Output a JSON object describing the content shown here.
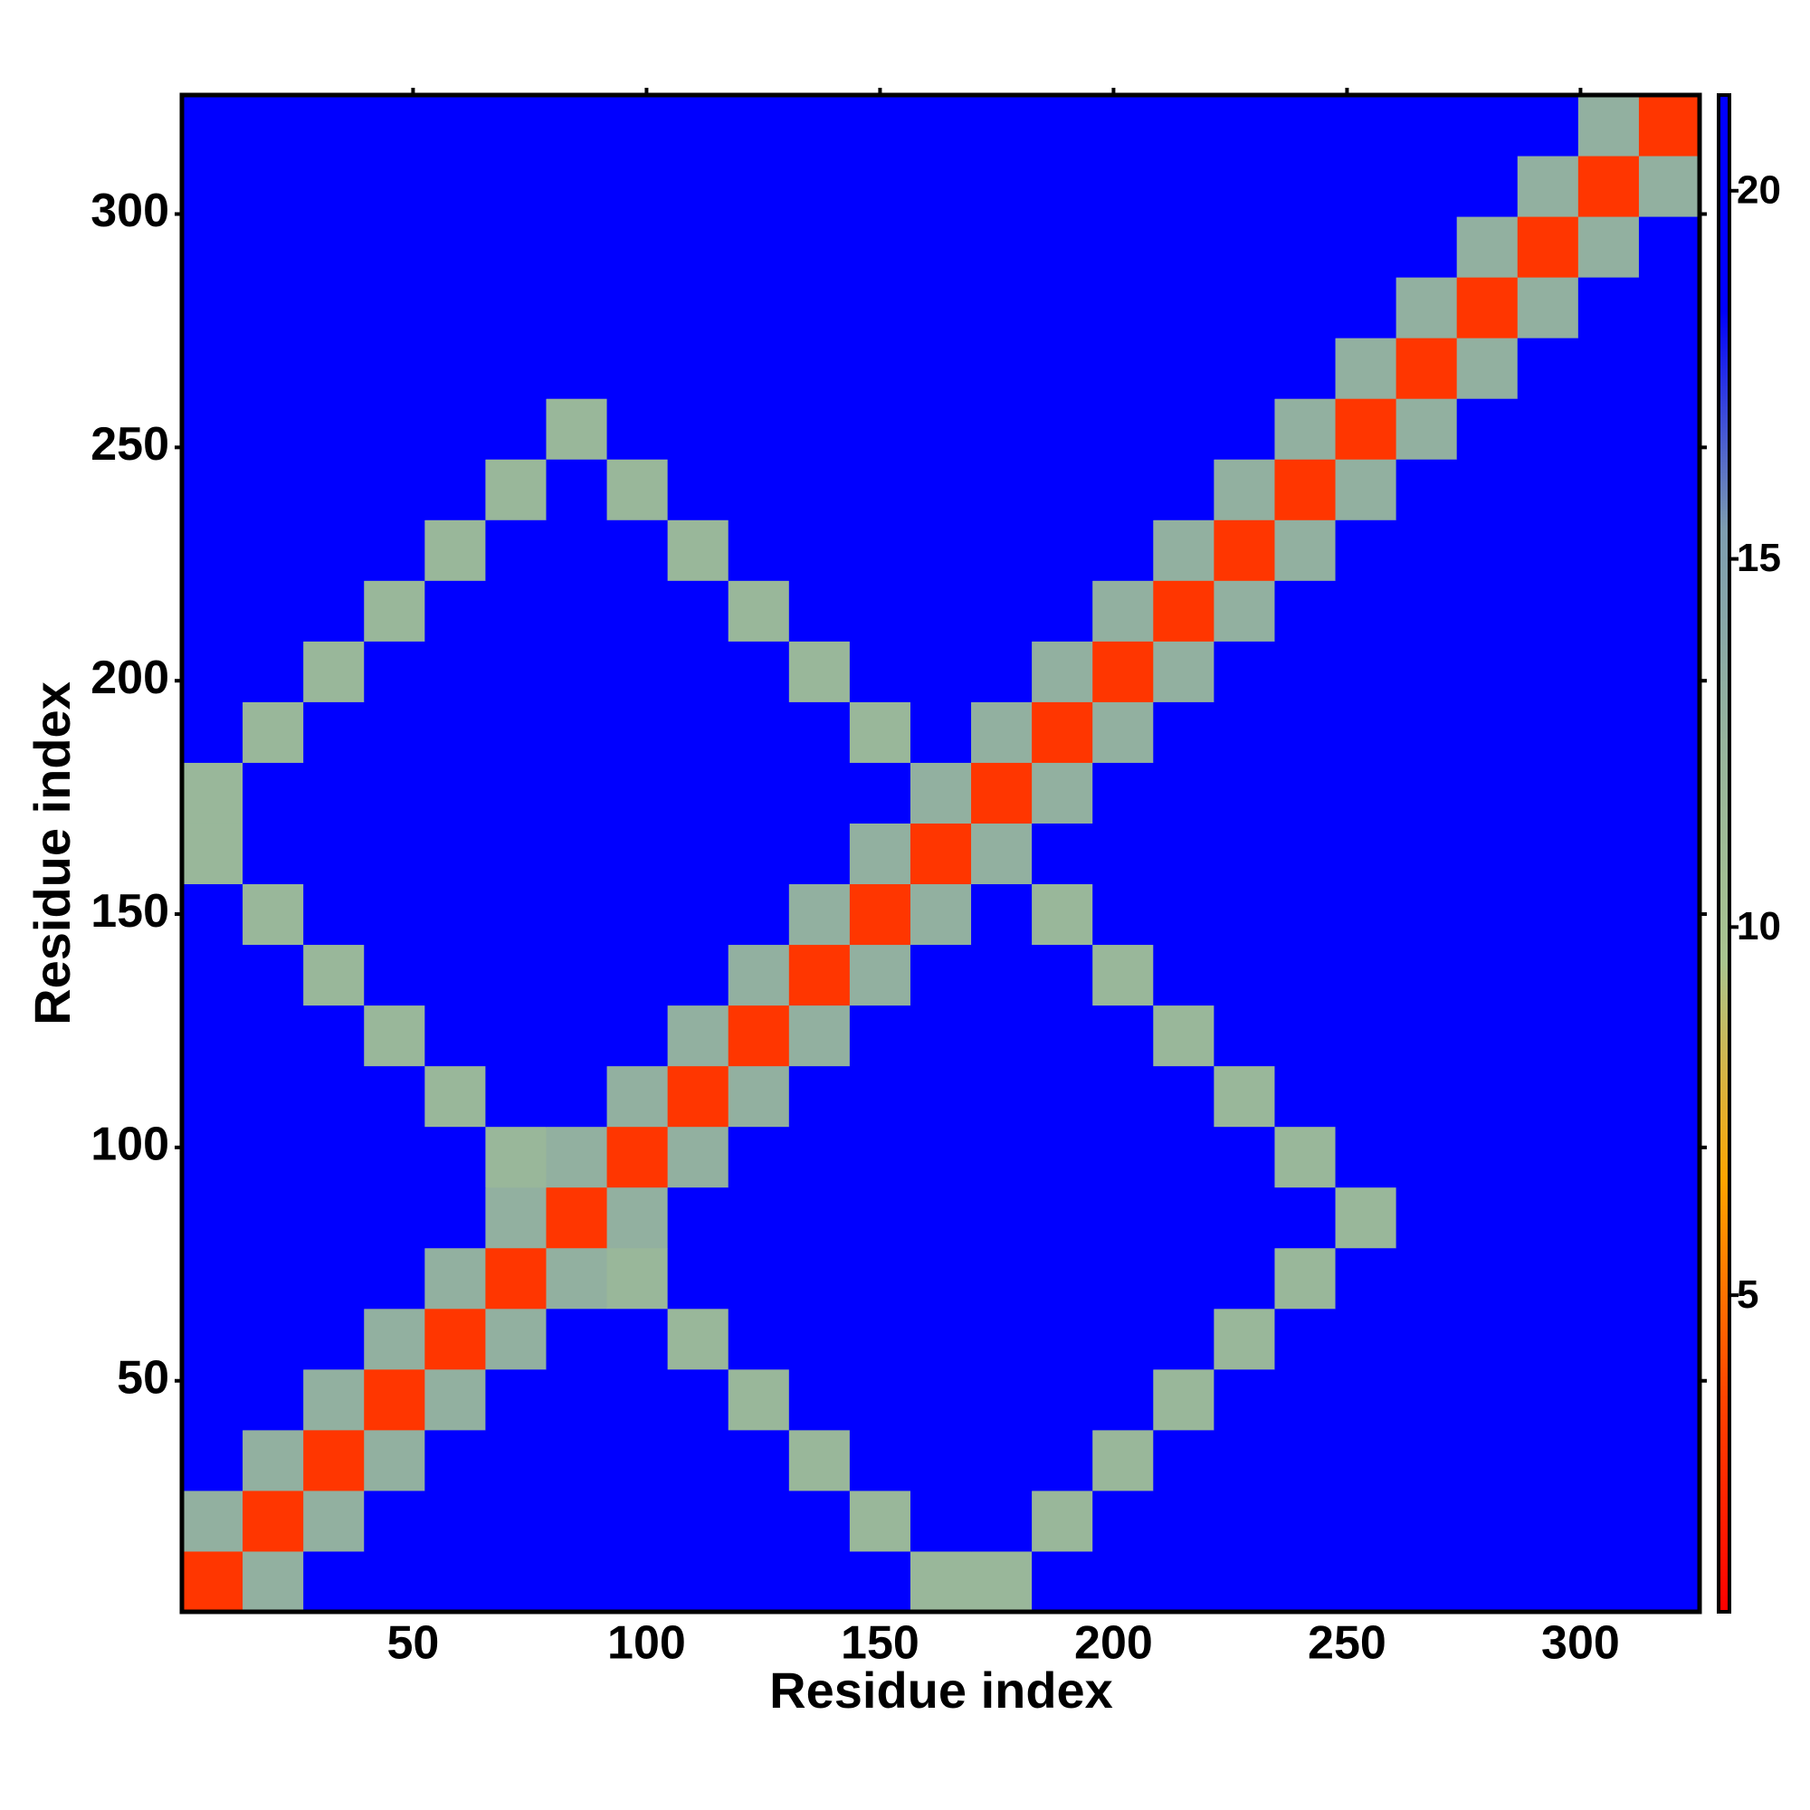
{
  "chart_data": {
    "type": "heatmap",
    "xlabel": "Residue index",
    "ylabel": "Residue index",
    "x": [
      7,
      20,
      33,
      46,
      59,
      72,
      85,
      98,
      111,
      124,
      137,
      150,
      163,
      176,
      189,
      202,
      215,
      228,
      241,
      254,
      267,
      280,
      293,
      306,
      319
    ],
    "y": [
      7,
      20,
      33,
      46,
      59,
      72,
      85,
      98,
      111,
      124,
      137,
      150,
      163,
      176,
      189,
      202,
      215,
      228,
      241,
      254,
      267,
      280,
      293,
      306,
      319
    ],
    "xlim": [
      0.5,
      325.5
    ],
    "ylim": [
      0.5,
      325.5
    ],
    "xticks": [
      50,
      100,
      150,
      200,
      250,
      300
    ],
    "yticks": [
      50,
      100,
      150,
      200,
      250,
      300
    ],
    "zlim": [
      0.7,
      21.3
    ],
    "zticks": [
      5,
      10,
      15,
      20
    ],
    "colors": [
      "#ff0000",
      "#ff4500",
      "#ffa500",
      "#a9c48f",
      "#96b49c",
      "#7d9db0",
      "#0000ff",
      "#0000ff"
    ],
    "z": [
      [
        3,
        13,
        21,
        21,
        21,
        21,
        21,
        21,
        21,
        21,
        21,
        21,
        12,
        12,
        21,
        21,
        21,
        21,
        21,
        21,
        21,
        21,
        21,
        21,
        21
      ],
      [
        13,
        3,
        13,
        21,
        21,
        21,
        21,
        21,
        21,
        21,
        21,
        12,
        21,
        21,
        12,
        21,
        21,
        21,
        21,
        21,
        21,
        21,
        21,
        21,
        21
      ],
      [
        21,
        13,
        3,
        13,
        21,
        21,
        21,
        21,
        21,
        21,
        12,
        21,
        21,
        21,
        21,
        12,
        21,
        21,
        21,
        21,
        21,
        21,
        21,
        21,
        21
      ],
      [
        21,
        21,
        13,
        3,
        13,
        21,
        21,
        21,
        21,
        12,
        21,
        21,
        21,
        21,
        21,
        21,
        12,
        21,
        21,
        21,
        21,
        21,
        21,
        21,
        21
      ],
      [
        21,
        21,
        21,
        13,
        3,
        13,
        21,
        21,
        12,
        21,
        21,
        21,
        21,
        21,
        21,
        21,
        21,
        12,
        21,
        21,
        21,
        21,
        21,
        21,
        21
      ],
      [
        21,
        21,
        21,
        21,
        13,
        3,
        13,
        12,
        21,
        21,
        21,
        21,
        21,
        21,
        21,
        21,
        21,
        21,
        12,
        21,
        21,
        21,
        21,
        21,
        21
      ],
      [
        21,
        21,
        21,
        21,
        21,
        13,
        3,
        13,
        21,
        21,
        21,
        21,
        21,
        21,
        21,
        21,
        21,
        21,
        21,
        12,
        21,
        21,
        21,
        21,
        21
      ],
      [
        21,
        21,
        21,
        21,
        21,
        12,
        13,
        3,
        13,
        21,
        21,
        21,
        21,
        21,
        21,
        21,
        21,
        21,
        12,
        21,
        21,
        21,
        21,
        21,
        21
      ],
      [
        21,
        21,
        21,
        21,
        12,
        21,
        21,
        13,
        3,
        13,
        21,
        21,
        21,
        21,
        21,
        21,
        21,
        12,
        21,
        21,
        21,
        21,
        21,
        21,
        21
      ],
      [
        21,
        21,
        21,
        12,
        21,
        21,
        21,
        21,
        13,
        3,
        13,
        21,
        21,
        21,
        21,
        21,
        12,
        21,
        21,
        21,
        21,
        21,
        21,
        21,
        21
      ],
      [
        21,
        21,
        12,
        21,
        21,
        21,
        21,
        21,
        21,
        13,
        3,
        13,
        21,
        21,
        21,
        12,
        21,
        21,
        21,
        21,
        21,
        21,
        21,
        21,
        21
      ],
      [
        21,
        12,
        21,
        21,
        21,
        21,
        21,
        21,
        21,
        21,
        13,
        3,
        13,
        21,
        12,
        21,
        21,
        21,
        21,
        21,
        21,
        21,
        21,
        21,
        21
      ],
      [
        12,
        21,
        21,
        21,
        21,
        21,
        21,
        21,
        21,
        21,
        21,
        13,
        3,
        13,
        21,
        21,
        21,
        21,
        21,
        21,
        21,
        21,
        21,
        21,
        21
      ],
      [
        12,
        21,
        21,
        21,
        21,
        21,
        21,
        21,
        21,
        21,
        21,
        21,
        13,
        3,
        13,
        21,
        21,
        21,
        21,
        21,
        21,
        21,
        21,
        21,
        21
      ],
      [
        21,
        12,
        21,
        21,
        21,
        21,
        21,
        21,
        21,
        21,
        21,
        12,
        21,
        13,
        3,
        13,
        21,
        21,
        21,
        21,
        21,
        21,
        21,
        21,
        21
      ],
      [
        21,
        21,
        12,
        21,
        21,
        21,
        21,
        21,
        21,
        21,
        12,
        21,
        21,
        21,
        13,
        3,
        13,
        21,
        21,
        21,
        21,
        21,
        21,
        21,
        21
      ],
      [
        21,
        21,
        21,
        12,
        21,
        21,
        21,
        21,
        21,
        12,
        21,
        21,
        21,
        21,
        21,
        13,
        3,
        13,
        21,
        21,
        21,
        21,
        21,
        21,
        21
      ],
      [
        21,
        21,
        21,
        21,
        12,
        21,
        21,
        21,
        12,
        21,
        21,
        21,
        21,
        21,
        21,
        21,
        13,
        3,
        13,
        21,
        21,
        21,
        21,
        21,
        21
      ],
      [
        21,
        21,
        21,
        21,
        21,
        12,
        21,
        12,
        21,
        21,
        21,
        21,
        21,
        21,
        21,
        21,
        21,
        13,
        3,
        13,
        21,
        21,
        21,
        21,
        21
      ],
      [
        21,
        21,
        21,
        21,
        21,
        21,
        12,
        21,
        21,
        21,
        21,
        21,
        21,
        21,
        21,
        21,
        21,
        21,
        13,
        3,
        13,
        21,
        21,
        21,
        21
      ],
      [
        21,
        21,
        21,
        21,
        21,
        21,
        21,
        21,
        21,
        21,
        21,
        21,
        21,
        21,
        21,
        21,
        21,
        21,
        21,
        13,
        3,
        13,
        21,
        21,
        21
      ],
      [
        21,
        21,
        21,
        21,
        21,
        21,
        21,
        21,
        21,
        21,
        21,
        21,
        21,
        21,
        21,
        21,
        21,
        21,
        21,
        21,
        13,
        3,
        13,
        21,
        21
      ],
      [
        21,
        21,
        21,
        21,
        21,
        21,
        21,
        21,
        21,
        21,
        21,
        21,
        21,
        21,
        21,
        21,
        21,
        21,
        21,
        21,
        21,
        13,
        3,
        13,
        21
      ],
      [
        21,
        21,
        21,
        21,
        21,
        21,
        21,
        21,
        21,
        21,
        21,
        21,
        21,
        21,
        21,
        21,
        21,
        21,
        21,
        21,
        21,
        21,
        13,
        3,
        13
      ],
      [
        21,
        21,
        21,
        21,
        21,
        21,
        21,
        21,
        21,
        21,
        21,
        21,
        21,
        21,
        21,
        21,
        21,
        21,
        21,
        21,
        21,
        21,
        21,
        13,
        3
      ]
    ]
  }
}
